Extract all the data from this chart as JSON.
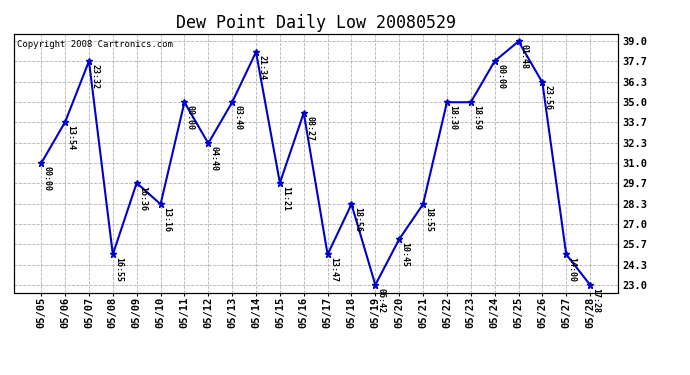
{
  "title": "Dew Point Daily Low 20080529",
  "copyright": "Copyright 2008 Cartronics.com",
  "dates": [
    "05/05",
    "05/06",
    "05/07",
    "05/08",
    "05/09",
    "05/10",
    "05/11",
    "05/12",
    "05/13",
    "05/14",
    "05/15",
    "05/16",
    "05/17",
    "05/18",
    "05/19",
    "05/20",
    "05/21",
    "05/22",
    "05/23",
    "05/24",
    "05/25",
    "05/26",
    "05/27",
    "05/28"
  ],
  "values": [
    31.0,
    33.7,
    37.7,
    25.0,
    29.7,
    28.3,
    35.0,
    32.3,
    35.0,
    38.3,
    29.7,
    34.3,
    25.0,
    28.3,
    23.0,
    26.0,
    28.3,
    35.0,
    35.0,
    37.7,
    39.0,
    36.3,
    25.0,
    23.0
  ],
  "time_labels": [
    "00:00",
    "13:54",
    "23:32",
    "16:55",
    "16:36",
    "13:16",
    "00:00",
    "04:40",
    "03:40",
    "21:34",
    "11:21",
    "08:27",
    "13:47",
    "18:56",
    "06:42",
    "10:45",
    "18:55",
    "18:30",
    "18:59",
    "00:00",
    "01:48",
    "23:56",
    "14:00",
    "17:28"
  ],
  "ylim_low": 22.5,
  "ylim_high": 39.5,
  "yticks": [
    23.0,
    24.3,
    25.7,
    27.0,
    28.3,
    29.7,
    31.0,
    32.3,
    33.7,
    35.0,
    36.3,
    37.7,
    39.0
  ],
  "line_color": "#0000CC",
  "bg_color": "#FFFFFF",
  "grid_color": "#AAAAAA",
  "title_fontsize": 12,
  "tick_fontsize": 7.5,
  "annot_fontsize": 6.0
}
